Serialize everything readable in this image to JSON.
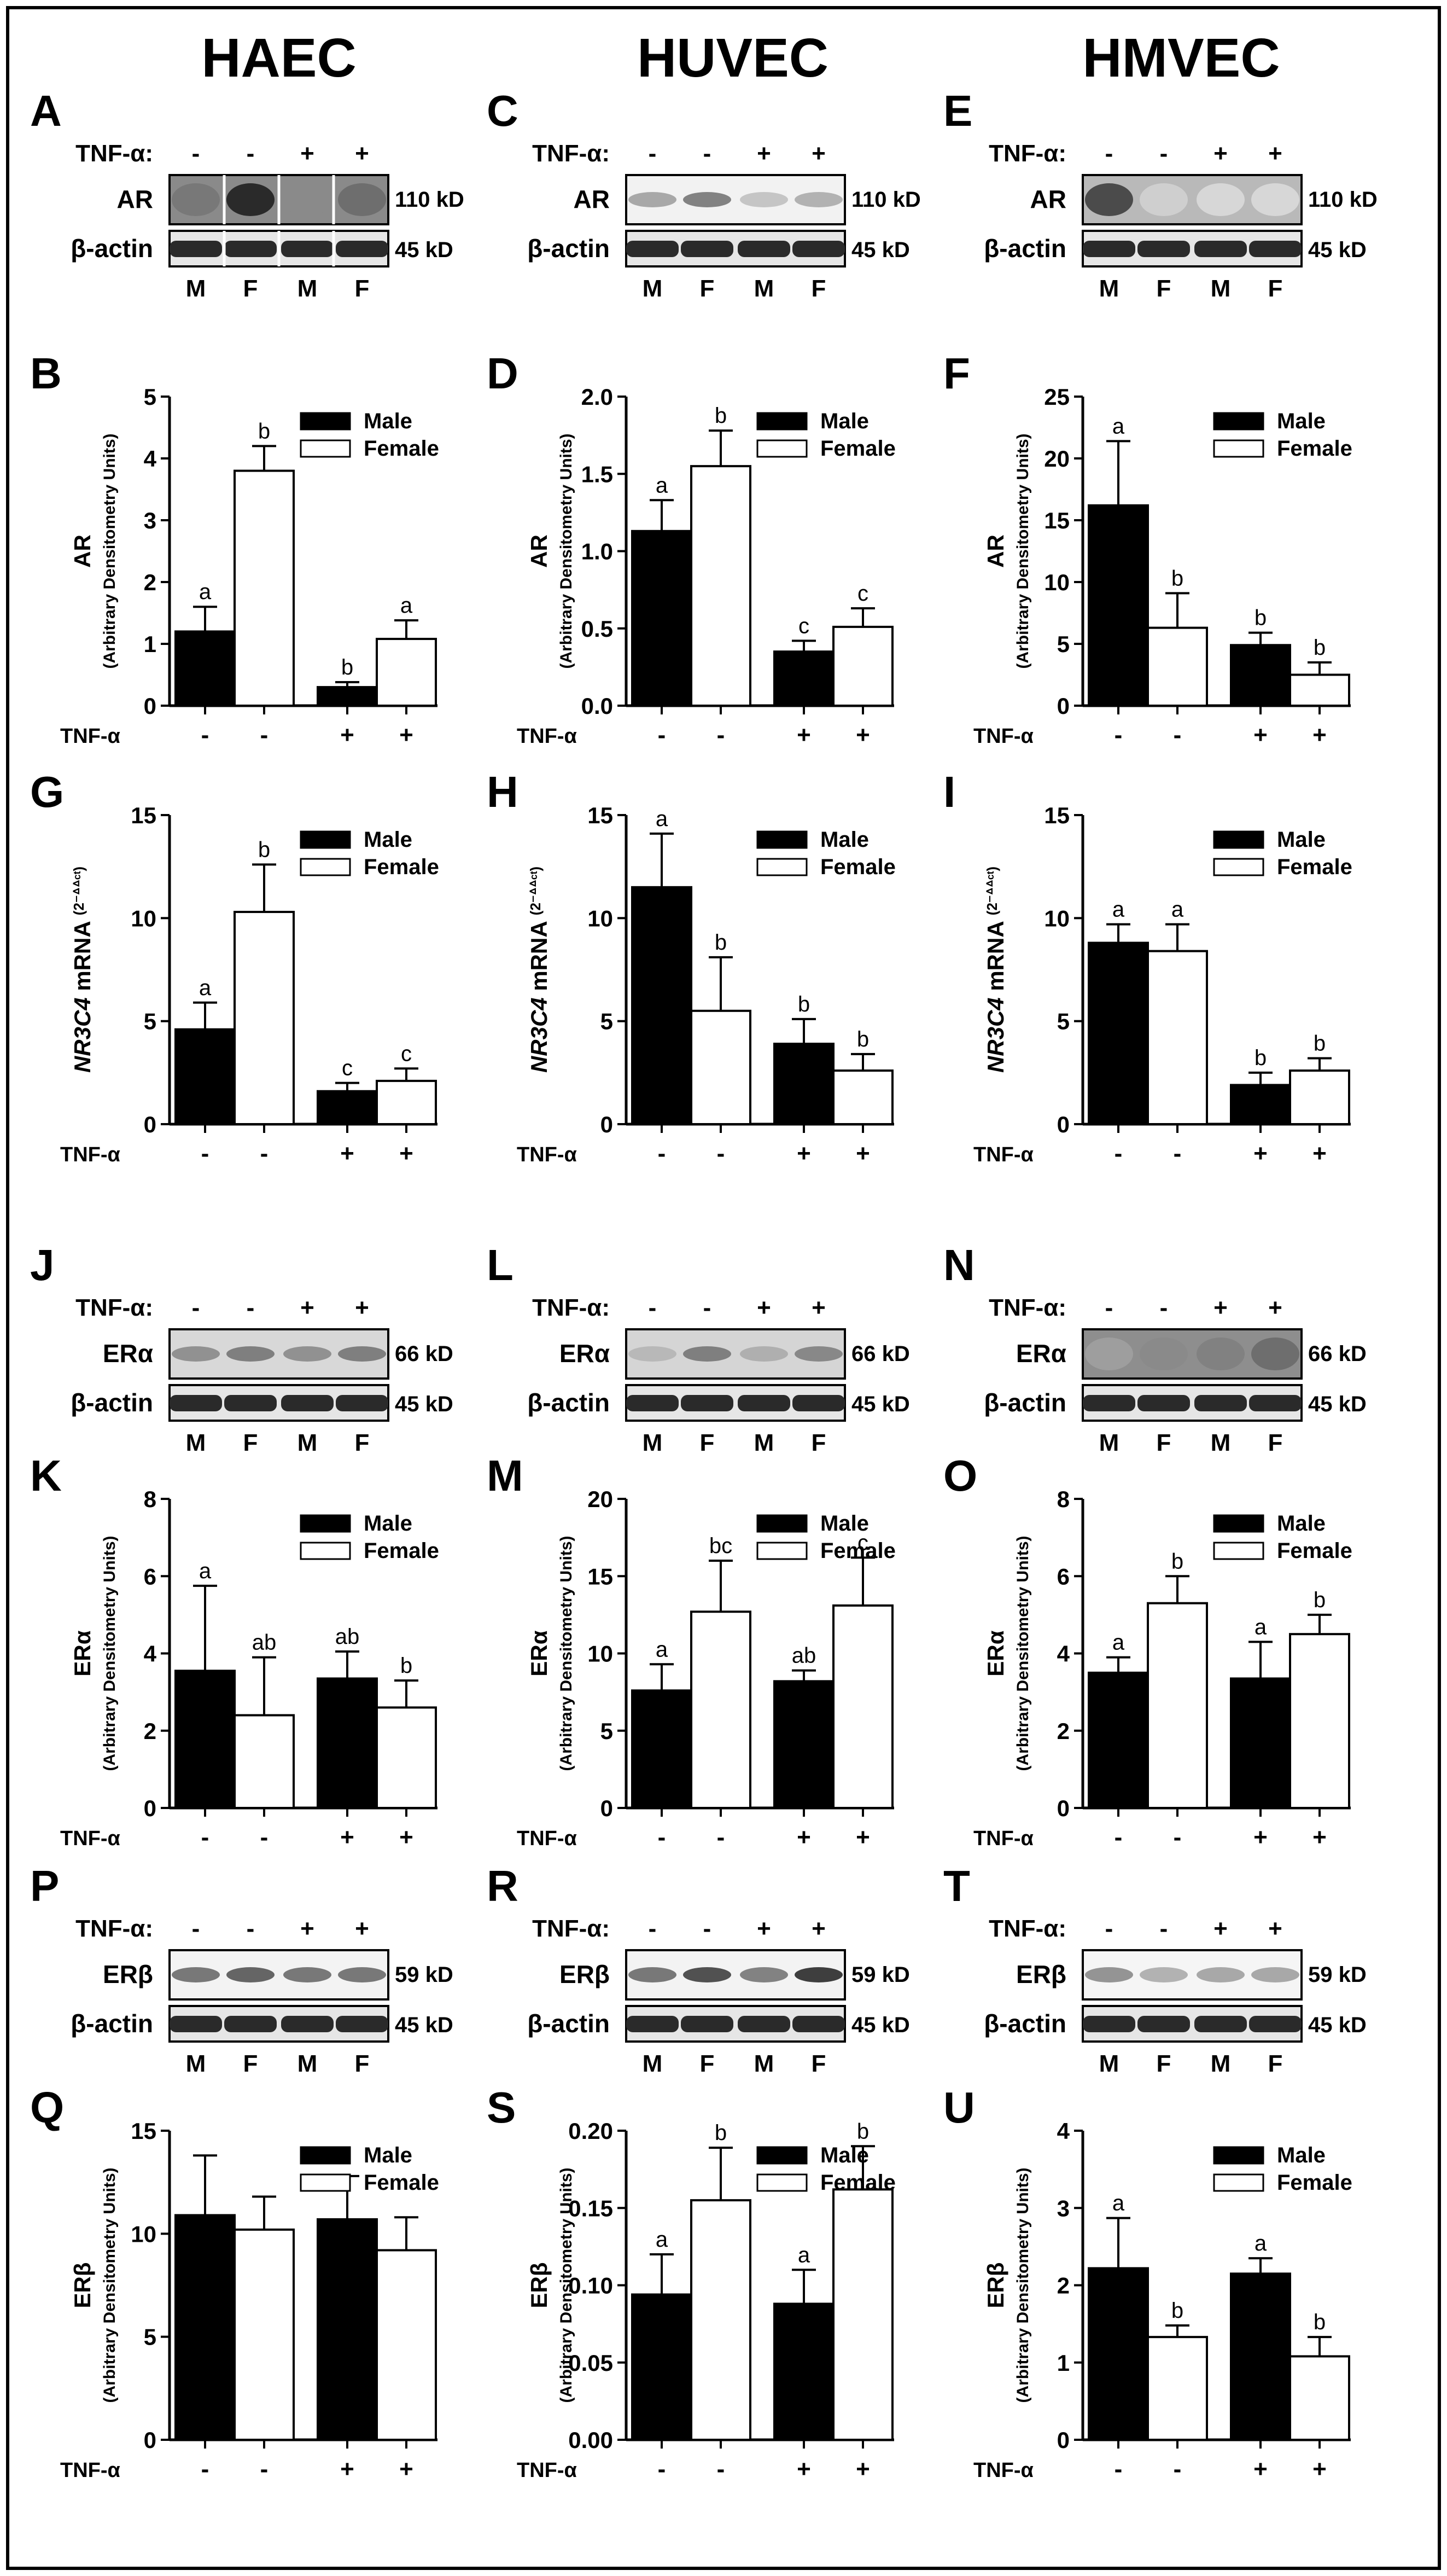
{
  "column_titles": [
    "HAEC",
    "HUVEC",
    "HMVEC"
  ],
  "legend": {
    "male": "Male",
    "female": "Female"
  },
  "treatment_label": "TNF-α",
  "blot_treatment_label": "TNF-α:",
  "treatment_marks": [
    "-",
    "-",
    "+",
    "+"
  ],
  "lane_labels": [
    "M",
    "F",
    "M",
    "F"
  ],
  "loading_control": {
    "name": "β-actin",
    "size": "45 kD"
  },
  "blots": [
    {
      "letter": "A",
      "protein": "AR",
      "size": "110 kD"
    },
    {
      "letter": "C",
      "protein": "AR",
      "size": "110 kD"
    },
    {
      "letter": "E",
      "protein": "AR",
      "size": "110 kD"
    },
    {
      "letter": "J",
      "protein": "ERα",
      "size": "66 kD"
    },
    {
      "letter": "L",
      "protein": "ERα",
      "size": "66 kD"
    },
    {
      "letter": "N",
      "protein": "ERα",
      "size": "66 kD"
    },
    {
      "letter": "P",
      "protein": "ERβ",
      "size": "59 kD"
    },
    {
      "letter": "R",
      "protein": "ERβ",
      "size": "59 kD"
    },
    {
      "letter": "T",
      "protein": "ERβ",
      "size": "59 kD"
    }
  ],
  "chart_data": [
    {
      "letter": "B",
      "type": "bar",
      "ylabel_main": "AR",
      "ylabel_sub": "(Arbitrary Densitometry Units)",
      "ylim": [
        0,
        5
      ],
      "ticks": [
        "0",
        "1",
        "2",
        "3",
        "4",
        "5"
      ],
      "values": [
        1.2,
        3.8,
        0.3,
        1.08
      ],
      "errors": [
        0.4,
        0.4,
        0.08,
        0.3
      ],
      "sig": [
        "a",
        "b",
        "b",
        "a"
      ]
    },
    {
      "letter": "D",
      "type": "bar",
      "ylabel_main": "AR",
      "ylabel_sub": "(Arbitrary Densitometry Units)",
      "ylim": [
        0,
        2
      ],
      "ticks": [
        "0.0",
        "0.5",
        "1.0",
        "1.5",
        "2.0"
      ],
      "values": [
        1.13,
        1.55,
        0.35,
        0.51
      ],
      "errors": [
        0.2,
        0.23,
        0.07,
        0.12
      ],
      "sig": [
        "a",
        "b",
        "c",
        "c"
      ]
    },
    {
      "letter": "F",
      "type": "bar",
      "ylabel_main": "AR",
      "ylabel_sub": "(Arbitrary Densitometry Units)",
      "ylim": [
        0,
        25
      ],
      "ticks": [
        "0",
        "5",
        "10",
        "15",
        "20",
        "25"
      ],
      "values": [
        16.2,
        6.3,
        4.9,
        2.5
      ],
      "errors": [
        5.2,
        2.8,
        1.0,
        1.0
      ],
      "sig": [
        "a",
        "b",
        "b",
        "b"
      ]
    },
    {
      "letter": "G",
      "type": "bar",
      "ylabel_main": "NR3C4",
      "ylabel_mid": " mRNA ",
      "ylabel_sup": "(2⁻ᐞᐞᶜᵗ)",
      "ylim": [
        0,
        15
      ],
      "ticks": [
        "0",
        "5",
        "10",
        "15"
      ],
      "values": [
        4.6,
        10.3,
        1.6,
        2.1
      ],
      "errors": [
        1.3,
        2.3,
        0.4,
        0.6
      ],
      "sig": [
        "a",
        "b",
        "c",
        "c"
      ]
    },
    {
      "letter": "H",
      "type": "bar",
      "ylabel_main": "NR3C4",
      "ylabel_mid": " mRNA ",
      "ylabel_sup": "(2⁻ᐞᐞᶜᵗ)",
      "ylim": [
        0,
        15
      ],
      "ticks": [
        "0",
        "5",
        "10",
        "15"
      ],
      "values": [
        11.5,
        5.5,
        3.9,
        2.6
      ],
      "errors": [
        2.6,
        2.6,
        1.2,
        0.8
      ],
      "sig": [
        "a",
        "b",
        "b",
        "b"
      ]
    },
    {
      "letter": "I",
      "type": "bar",
      "ylabel_main": "NR3C4",
      "ylabel_mid": " mRNA ",
      "ylabel_sup": "(2⁻ᐞᐞᶜᵗ)",
      "ylim": [
        0,
        15
      ],
      "ticks": [
        "0",
        "5",
        "10",
        "15"
      ],
      "values": [
        8.8,
        8.4,
        1.9,
        2.6
      ],
      "errors": [
        0.9,
        1.3,
        0.6,
        0.6
      ],
      "sig": [
        "a",
        "a",
        "b",
        "b"
      ]
    },
    {
      "letter": "K",
      "type": "bar",
      "ylabel_main": "ERα",
      "ylabel_sub": "(Arbitrary Densitometry Units)",
      "ylim": [
        0,
        8
      ],
      "ticks": [
        "0",
        "2",
        "4",
        "6",
        "8"
      ],
      "values": [
        3.55,
        2.4,
        3.35,
        2.6
      ],
      "errors": [
        2.2,
        1.5,
        0.7,
        0.7
      ],
      "sig": [
        "a",
        "ab",
        "ab",
        "b"
      ]
    },
    {
      "letter": "M",
      "type": "bar",
      "ylabel_main": "ERα",
      "ylabel_sub": "(Arbitrary Densitometry Units)",
      "ylim": [
        0,
        20
      ],
      "ticks": [
        "0",
        "5",
        "10",
        "15",
        "20"
      ],
      "values": [
        7.6,
        12.7,
        8.2,
        13.1
      ],
      "errors": [
        1.7,
        3.3,
        0.7,
        3.1
      ],
      "sig": [
        "a",
        "bc",
        "ab",
        "c"
      ]
    },
    {
      "letter": "O",
      "type": "bar",
      "ylabel_main": "ERα",
      "ylabel_sub": "(Arbitrary Densitometry Units)",
      "ylim": [
        0,
        8
      ],
      "ticks": [
        "0",
        "2",
        "4",
        "6",
        "8"
      ],
      "values": [
        3.5,
        5.3,
        3.35,
        4.5
      ],
      "errors": [
        0.4,
        0.7,
        0.95,
        0.5
      ],
      "sig": [
        "a",
        "b",
        "a",
        "b"
      ]
    },
    {
      "letter": "Q",
      "type": "bar",
      "ylabel_main": "ERβ",
      "ylabel_sub": "(Arbitrary Densitometry Units)",
      "ylim": [
        0,
        15
      ],
      "ticks": [
        "0",
        "5",
        "10",
        "15"
      ],
      "values": [
        10.9,
        10.2,
        10.7,
        9.2
      ],
      "errors": [
        2.9,
        1.6,
        2.1,
        1.6
      ],
      "sig": [
        "",
        "",
        "",
        ""
      ]
    },
    {
      "letter": "S",
      "type": "bar",
      "ylabel_main": "ERβ",
      "ylabel_sub": "(Arbitrary Densitometry Units)",
      "ylim": [
        0,
        0.2
      ],
      "ticks": [
        "0.00",
        "0.05",
        "0.10",
        "0.15",
        "0.20"
      ],
      "values": [
        0.094,
        0.155,
        0.088,
        0.162
      ],
      "errors": [
        0.026,
        0.034,
        0.022,
        0.028
      ],
      "sig": [
        "a",
        "b",
        "a",
        "b"
      ]
    },
    {
      "letter": "U",
      "type": "bar",
      "ylabel_main": "ERβ",
      "ylabel_sub": "(Arbitrary Densitometry Units)",
      "ylim": [
        0,
        4
      ],
      "ticks": [
        "0",
        "1",
        "2",
        "3",
        "4"
      ],
      "values": [
        2.22,
        1.33,
        2.15,
        1.08
      ],
      "errors": [
        0.65,
        0.15,
        0.2,
        0.25
      ],
      "sig": [
        "a",
        "b",
        "a",
        "b"
      ]
    }
  ]
}
